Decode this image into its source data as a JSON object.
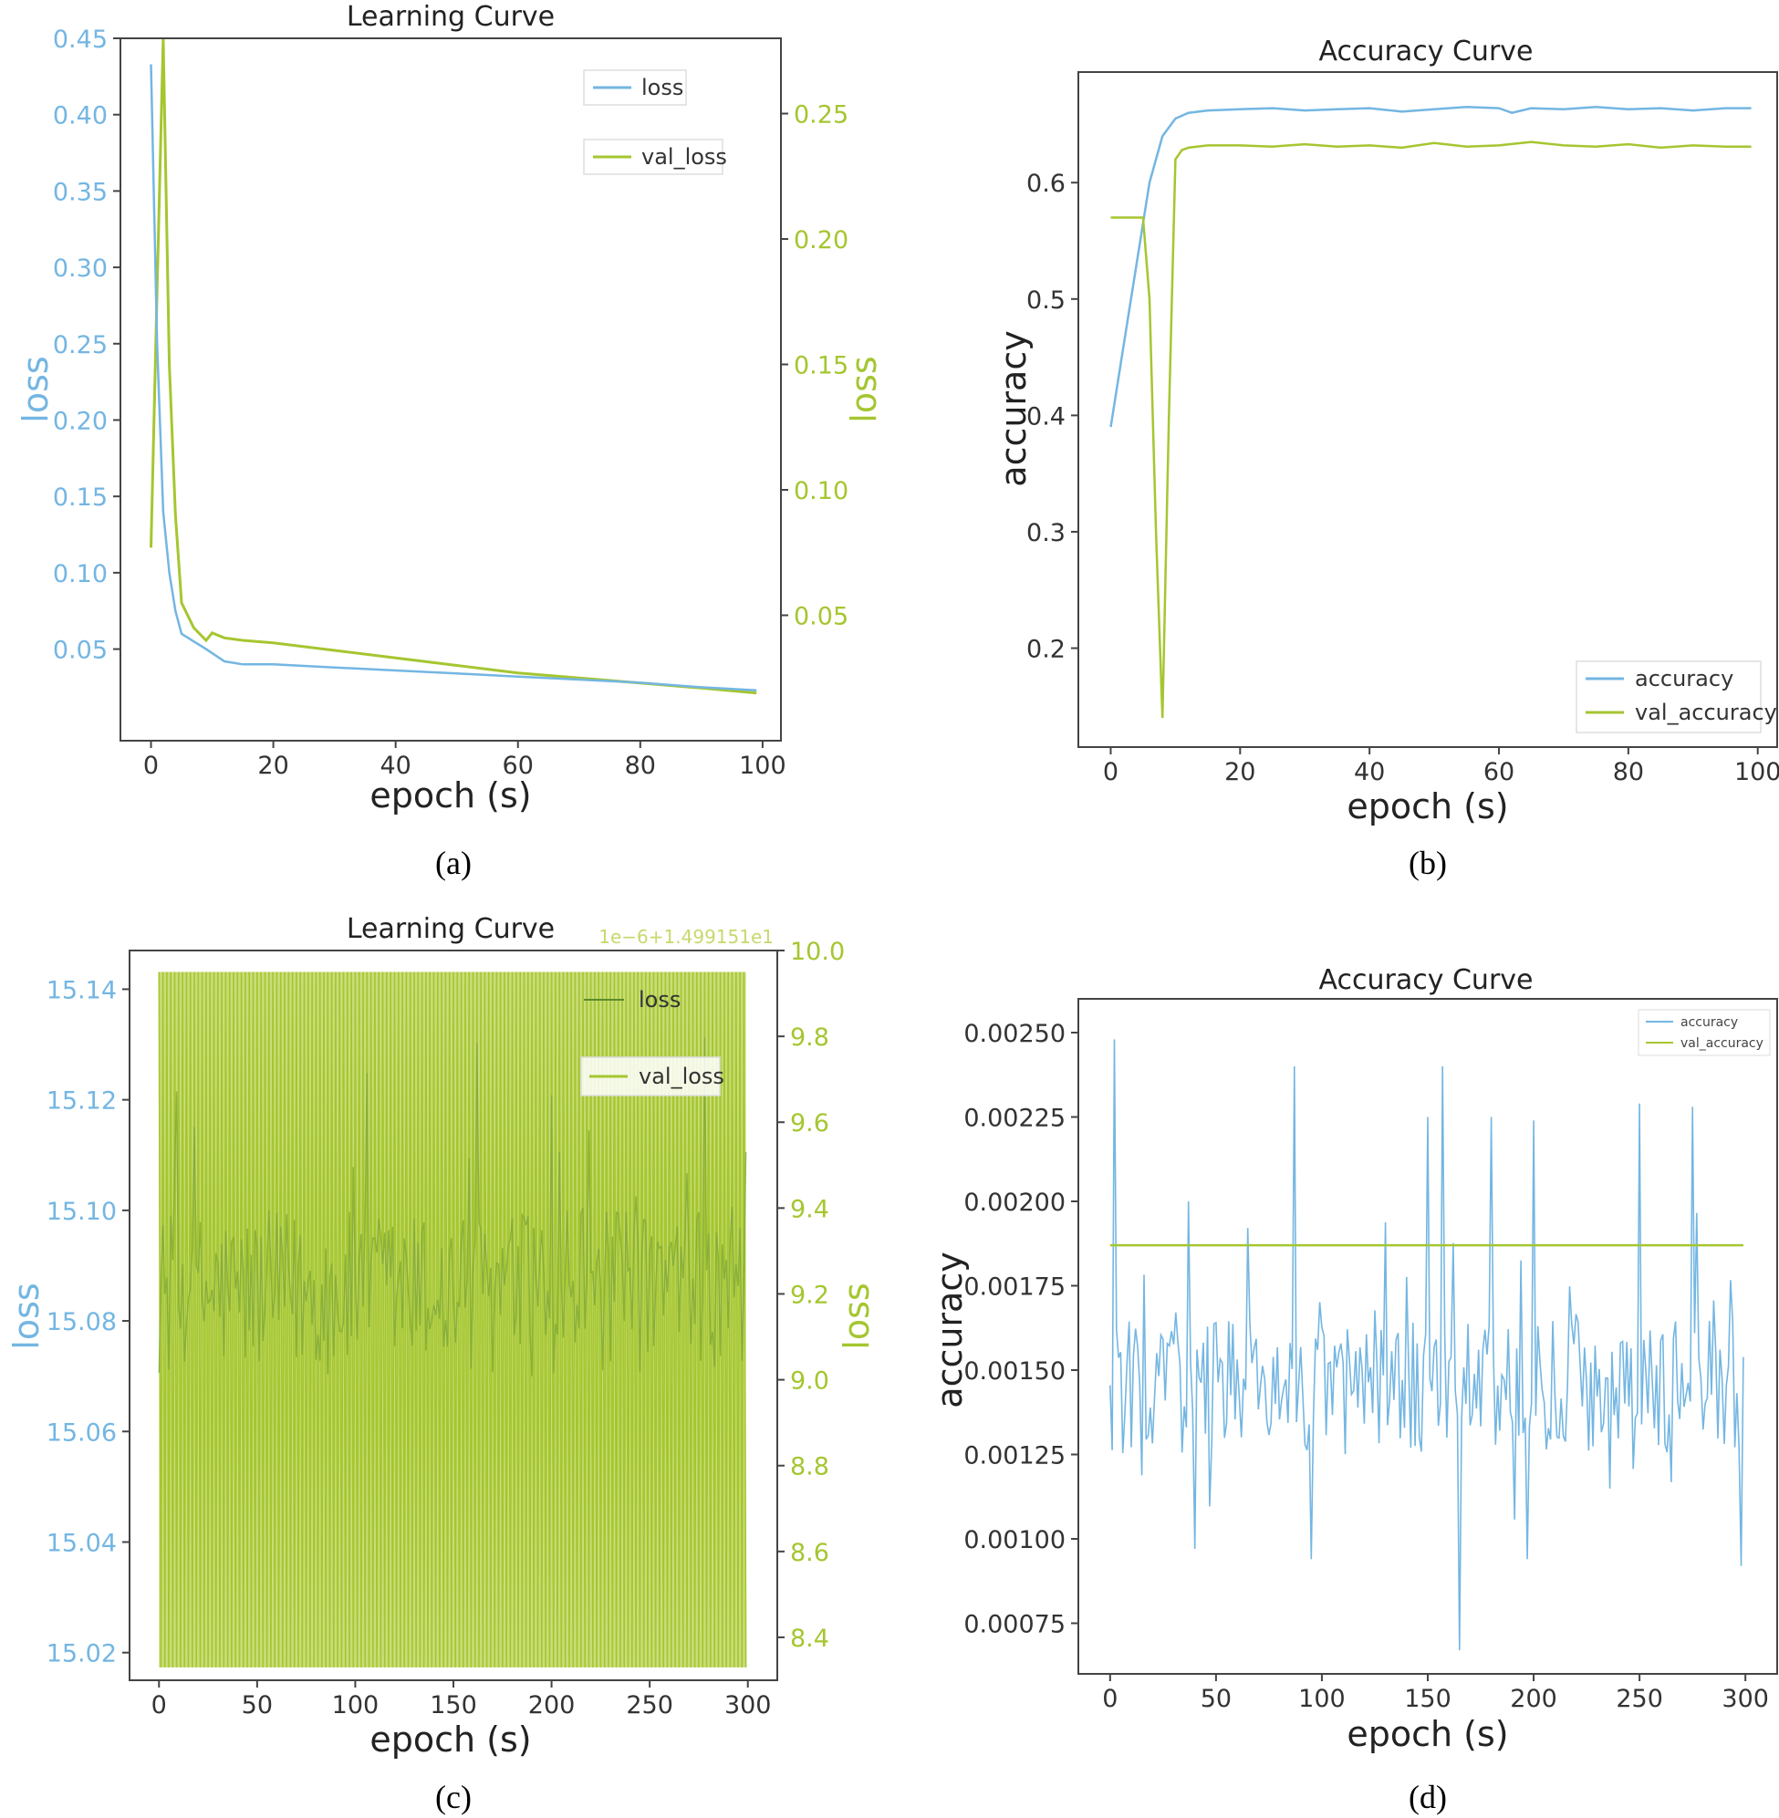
{
  "colors": {
    "blue": "#74B6E2",
    "green": "#A5C630"
  },
  "panels": [
    {
      "caption": "(a)"
    },
    {
      "caption": "(b)"
    },
    {
      "caption": "(c)"
    },
    {
      "caption": "(d)"
    }
  ],
  "chart_data": [
    {
      "type": "line",
      "title": "Learning Curve",
      "xlabel": "epoch (s)",
      "ylabel": "loss",
      "y2label": "loss",
      "xlim": [
        -5,
        103
      ],
      "ylim": [
        -0.01,
        0.45
      ],
      "y2lim": [
        0.0,
        0.28
      ],
      "xticks": [
        0,
        20,
        40,
        60,
        80,
        100
      ],
      "yticks": [
        0.05,
        0.1,
        0.15,
        0.2,
        0.25,
        0.3,
        0.35,
        0.4,
        0.45
      ],
      "yticklabels": [
        "0.05",
        "0.10",
        "0.15",
        "0.20",
        "0.25",
        "0.30",
        "0.35",
        "0.40",
        "0.45"
      ],
      "y2ticks": [
        0.05,
        0.1,
        0.15,
        0.2,
        0.25
      ],
      "y2ticklabels": [
        "0.05",
        "0.10",
        "0.15",
        "0.20",
        "0.25"
      ],
      "legend_position": "top-right",
      "series": [
        {
          "name": "loss",
          "axis": "left",
          "x": [
            0,
            1,
            2,
            3,
            4,
            5,
            7,
            9,
            12,
            15,
            20,
            30,
            40,
            50,
            60,
            70,
            80,
            90,
            99
          ],
          "y": [
            0.433,
            0.25,
            0.14,
            0.1,
            0.075,
            0.06,
            0.055,
            0.05,
            0.042,
            0.04,
            0.04,
            0.038,
            0.036,
            0.034,
            0.032,
            0.03,
            0.028,
            0.025,
            0.023
          ]
        },
        {
          "name": "val_loss",
          "axis": "right",
          "x": [
            0,
            1,
            2,
            3,
            4,
            5,
            7,
            9,
            10,
            12,
            15,
            20,
            30,
            40,
            50,
            60,
            70,
            80,
            90,
            99
          ],
          "y": [
            0.077,
            0.18,
            0.28,
            0.15,
            0.09,
            0.055,
            0.045,
            0.04,
            0.043,
            0.041,
            0.04,
            0.039,
            0.036,
            0.033,
            0.03,
            0.027,
            0.025,
            0.023,
            0.021,
            0.019
          ]
        }
      ]
    },
    {
      "type": "line",
      "title": "Accuracy Curve",
      "xlabel": "epoch (s)",
      "ylabel": "accuracy",
      "xlim": [
        -5,
        103
      ],
      "ylim": [
        0.115,
        0.695
      ],
      "xticks": [
        0,
        20,
        40,
        60,
        80,
        100
      ],
      "yticks": [
        0.2,
        0.3,
        0.4,
        0.5,
        0.6
      ],
      "yticklabels": [
        "0.2",
        "0.3",
        "0.4",
        "0.5",
        "0.6"
      ],
      "legend_position": "bottom-right",
      "series": [
        {
          "name": "accuracy",
          "x": [
            0,
            2,
            4,
            6,
            8,
            10,
            12,
            15,
            20,
            25,
            30,
            35,
            40,
            45,
            50,
            55,
            60,
            62,
            65,
            70,
            75,
            80,
            85,
            90,
            95,
            99
          ],
          "y": [
            0.39,
            0.46,
            0.53,
            0.6,
            0.64,
            0.655,
            0.66,
            0.662,
            0.663,
            0.664,
            0.662,
            0.663,
            0.664,
            0.661,
            0.663,
            0.665,
            0.664,
            0.66,
            0.664,
            0.663,
            0.665,
            0.663,
            0.664,
            0.662,
            0.664,
            0.664
          ]
        },
        {
          "name": "val_accuracy",
          "x": [
            0,
            5,
            6,
            7,
            8,
            9,
            10,
            11,
            12,
            15,
            20,
            25,
            30,
            35,
            40,
            45,
            50,
            55,
            60,
            65,
            70,
            75,
            80,
            85,
            90,
            95,
            99
          ],
          "y": [
            0.57,
            0.57,
            0.5,
            0.3,
            0.14,
            0.4,
            0.62,
            0.628,
            0.63,
            0.632,
            0.632,
            0.631,
            0.633,
            0.631,
            0.632,
            0.63,
            0.634,
            0.631,
            0.632,
            0.635,
            0.632,
            0.631,
            0.633,
            0.63,
            0.632,
            0.631,
            0.631
          ]
        }
      ]
    },
    {
      "type": "line",
      "title": "Learning Curve",
      "xlabel": "epoch (s)",
      "ylabel": "loss",
      "y2label": "loss",
      "y2offset_text": "1e−6+1.499151e1",
      "xlim": [
        -15,
        315
      ],
      "ylim": [
        15.015,
        15.147
      ],
      "y2lim": [
        8.3,
        10.0
      ],
      "xticks": [
        0,
        50,
        100,
        150,
        200,
        250,
        300
      ],
      "yticks": [
        15.02,
        15.04,
        15.06,
        15.08,
        15.1,
        15.12,
        15.14
      ],
      "yticklabels": [
        "15.02",
        "15.04",
        "15.06",
        "15.08",
        "15.10",
        "15.12",
        "15.14"
      ],
      "y2ticks": [
        8.4,
        8.6,
        8.8,
        9.0,
        9.2,
        9.4,
        9.6,
        9.8,
        10.0
      ],
      "y2ticklabels": [
        "8.4",
        "8.6",
        "8.8",
        "9.0",
        "9.2",
        "9.4",
        "9.6",
        "9.8",
        "10.0"
      ],
      "legend_position": "top-right",
      "series": [
        {
          "name": "loss",
          "axis": "left",
          "x_range": [
            0,
            299
          ],
          "y_center": 15.085,
          "y_min": 15.055,
          "y_max": 15.14
        },
        {
          "name": "val_loss",
          "axis": "right",
          "x_range": [
            0,
            299
          ],
          "y_min": 8.33,
          "y_max": 9.95,
          "pattern": "alternating"
        }
      ]
    },
    {
      "type": "line",
      "title": "Accuracy Curve",
      "xlabel": "epoch (s)",
      "ylabel": "accuracy",
      "xlim": [
        -15,
        315
      ],
      "ylim": [
        0.0006,
        0.0026
      ],
      "xticks": [
        0,
        50,
        100,
        150,
        200,
        250,
        300
      ],
      "yticks": [
        0.00075,
        0.001,
        0.00125,
        0.0015,
        0.00175,
        0.002,
        0.00225,
        0.0025
      ],
      "yticklabels": [
        "0.00075",
        "0.00100",
        "0.00125",
        "0.00150",
        "0.00175",
        "0.00200",
        "0.00225",
        "0.00250"
      ],
      "legend_position": "top-right",
      "series": [
        {
          "name": "accuracy",
          "x_range": [
            0,
            299
          ],
          "y_base": 0.00145,
          "peaks": [
            [
              2,
              0.00248
            ],
            [
              37,
              0.002
            ],
            [
              87,
              0.0024
            ],
            [
              150,
              0.00225
            ],
            [
              157,
              0.0024
            ],
            [
              180,
              0.00225
            ],
            [
              200,
              0.00224
            ],
            [
              250,
              0.00229
            ],
            [
              275,
              0.00228
            ]
          ],
          "troughs": [
            [
              40,
              0.00097
            ],
            [
              95,
              0.00094
            ],
            [
              165,
              0.00067
            ],
            [
              197,
              0.00094
            ],
            [
              298,
              0.00092
            ]
          ]
        },
        {
          "name": "val_accuracy",
          "x": [
            0,
            299
          ],
          "y": [
            0.00187,
            0.00187
          ]
        }
      ]
    }
  ]
}
